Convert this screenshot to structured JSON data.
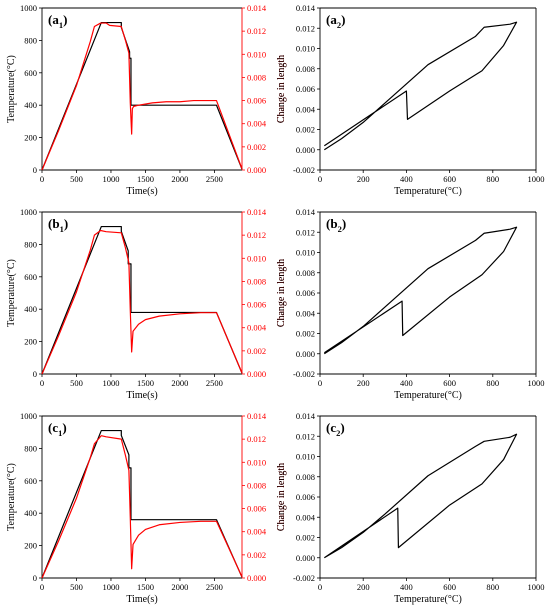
{
  "colors": {
    "black": "#000000",
    "red": "#ff0000"
  },
  "chart_data": [
    {
      "id": "a1",
      "type": "line",
      "panel_label": "(a",
      "panel_sub": "1",
      "panel_close": ")",
      "xlabel": "Time(s)",
      "ylabel": "Temperature(°C)",
      "y2label": "Change in length",
      "xlim": [
        0,
        2900
      ],
      "ylim": [
        0,
        1000
      ],
      "y2lim": [
        0,
        0.014
      ],
      "xticks": [
        "0",
        "500",
        "1000",
        "1500",
        "2000",
        "2500"
      ],
      "yticks": [
        "0",
        "200",
        "400",
        "600",
        "800",
        "1000"
      ],
      "y2ticks": [
        "0.000",
        "0.002",
        "0.004",
        "0.006",
        "0.008",
        "0.010",
        "0.012",
        "0.014"
      ],
      "series": [
        {
          "axis": "left",
          "color": "#000000",
          "points": [
            [
              0,
              0
            ],
            [
              860,
              910
            ],
            [
              1150,
              910
            ],
            [
              1150,
              880
            ],
            [
              1270,
              730
            ],
            [
              1270,
              690
            ],
            [
              1290,
              690
            ],
            [
              1290,
              400
            ],
            [
              2530,
              400
            ],
            [
              2900,
              5
            ]
          ]
        },
        {
          "axis": "right",
          "color": "#ff0000",
          "points": [
            [
              0,
              0
            ],
            [
              240,
              0.0034
            ],
            [
              500,
              0.0073
            ],
            [
              700,
              0.0111
            ],
            [
              760,
              0.0124
            ],
            [
              850,
              0.0127
            ],
            [
              930,
              0.0127
            ],
            [
              980,
              0.0125
            ],
            [
              1150,
              0.0124
            ],
            [
              1210,
              0.0112
            ],
            [
              1260,
              0.0101
            ],
            [
              1280,
              0.0058
            ],
            [
              1300,
              0.0031
            ],
            [
              1310,
              0.0053
            ],
            [
              1330,
              0.0055
            ],
            [
              1400,
              0.0056
            ],
            [
              1600,
              0.0058
            ],
            [
              1800,
              0.0059
            ],
            [
              2000,
              0.0059
            ],
            [
              2200,
              0.006
            ],
            [
              2530,
              0.006
            ],
            [
              2900,
              0.0001
            ]
          ]
        }
      ]
    },
    {
      "id": "a2",
      "type": "line",
      "panel_label": "(a",
      "panel_sub": "2",
      "panel_close": ")",
      "xlabel": "Temperature(°C)",
      "ylabel": "Change in length",
      "xlim": [
        0,
        1000
      ],
      "ylim": [
        -0.002,
        0.014
      ],
      "xticks": [
        "0",
        "200",
        "400",
        "600",
        "800",
        "1000"
      ],
      "yticks": [
        "-0.002",
        "0.000",
        "0.002",
        "0.004",
        "0.006",
        "0.008",
        "0.010",
        "0.012",
        "0.014"
      ],
      "series": [
        {
          "axis": "left",
          "color": "#000000",
          "points": [
            [
              20,
              0.0004
            ],
            [
              400,
              0.0058
            ],
            [
              405,
              0.003
            ],
            [
              600,
              0.0058
            ],
            [
              750,
              0.0078
            ],
            [
              850,
              0.0103
            ],
            [
              910,
              0.0126
            ],
            [
              880,
              0.0124
            ],
            [
              760,
              0.0121
            ],
            [
              720,
              0.0112
            ],
            [
              500,
              0.0084
            ],
            [
              300,
              0.0046
            ],
            [
              200,
              0.0027
            ],
            [
              100,
              0.0011
            ],
            [
              20,
              0
            ]
          ]
        }
      ]
    },
    {
      "id": "b1",
      "type": "line",
      "panel_label": "(b",
      "panel_sub": "1",
      "panel_close": ")",
      "xlabel": "Time(s)",
      "ylabel": "Temperature(°C)",
      "y2label": "Change in length",
      "xlim": [
        0,
        2900
      ],
      "ylim": [
        0,
        1000
      ],
      "y2lim": [
        0,
        0.014
      ],
      "xticks": [
        "0",
        "500",
        "1000",
        "1500",
        "2000",
        "2500"
      ],
      "yticks": [
        "0",
        "200",
        "400",
        "600",
        "800",
        "1000"
      ],
      "y2ticks": [
        "0.000",
        "0.002",
        "0.004",
        "0.006",
        "0.008",
        "0.010",
        "0.012",
        "0.014"
      ],
      "series": [
        {
          "axis": "left",
          "color": "#000000",
          "points": [
            [
              0,
              0
            ],
            [
              860,
              910
            ],
            [
              1150,
              910
            ],
            [
              1150,
              880
            ],
            [
              1250,
              760
            ],
            [
              1250,
              680
            ],
            [
              1290,
              680
            ],
            [
              1290,
              380
            ],
            [
              2530,
              380
            ],
            [
              2900,
              5
            ]
          ]
        },
        {
          "axis": "right",
          "color": "#ff0000",
          "points": [
            [
              0,
              0
            ],
            [
              240,
              0.0033
            ],
            [
              500,
              0.0071
            ],
            [
              700,
              0.0107
            ],
            [
              760,
              0.012
            ],
            [
              850,
              0.0124
            ],
            [
              930,
              0.0123
            ],
            [
              1150,
              0.0122
            ],
            [
              1210,
              0.0109
            ],
            [
              1260,
              0.0096
            ],
            [
              1280,
              0.0055
            ],
            [
              1300,
              0.0019
            ],
            [
              1320,
              0.0037
            ],
            [
              1400,
              0.0043
            ],
            [
              1500,
              0.0047
            ],
            [
              1700,
              0.005
            ],
            [
              2000,
              0.0052
            ],
            [
              2300,
              0.0053
            ],
            [
              2530,
              0.0053
            ],
            [
              2900,
              0.0001
            ]
          ]
        }
      ]
    },
    {
      "id": "b2",
      "type": "line",
      "panel_label": "(b",
      "panel_sub": "2",
      "panel_close": ")",
      "xlabel": "Temperature(°C)",
      "ylabel": "Change in length",
      "xlim": [
        0,
        1000
      ],
      "ylim": [
        -0.002,
        0.014
      ],
      "xticks": [
        "0",
        "200",
        "400",
        "600",
        "800",
        "1000"
      ],
      "yticks": [
        "-0.002",
        "0.000",
        "0.002",
        "0.004",
        "0.006",
        "0.008",
        "0.010",
        "0.012",
        "0.014"
      ],
      "series": [
        {
          "axis": "left",
          "color": "#000000",
          "points": [
            [
              20,
              0.0001
            ],
            [
              380,
              0.0052
            ],
            [
              383,
              0.0018
            ],
            [
              600,
              0.0056
            ],
            [
              750,
              0.0078
            ],
            [
              850,
              0.0101
            ],
            [
              910,
              0.0125
            ],
            [
              880,
              0.0123
            ],
            [
              760,
              0.0119
            ],
            [
              720,
              0.0112
            ],
            [
              500,
              0.0084
            ],
            [
              300,
              0.0046
            ],
            [
              200,
              0.0027
            ],
            [
              100,
              0.0011
            ],
            [
              20,
              0
            ]
          ]
        }
      ]
    },
    {
      "id": "c1",
      "type": "line",
      "panel_label": "(c",
      "panel_sub": "1",
      "panel_close": ")",
      "xlabel": "Time(s)",
      "ylabel": "Temperature(°C)",
      "y2label": "Change in length",
      "xlim": [
        0,
        2900
      ],
      "ylim": [
        0,
        1000
      ],
      "y2lim": [
        0,
        0.014
      ],
      "xticks": [
        "0",
        "500",
        "1000",
        "1500",
        "2000",
        "2500"
      ],
      "yticks": [
        "0",
        "200",
        "400",
        "600",
        "800",
        "1000"
      ],
      "y2ticks": [
        "0.000",
        "0.002",
        "0.004",
        "0.006",
        "0.008",
        "0.010",
        "0.012",
        "0.014"
      ],
      "series": [
        {
          "axis": "left",
          "color": "#000000",
          "points": [
            [
              0,
              0
            ],
            [
              860,
              910
            ],
            [
              1150,
              910
            ],
            [
              1150,
              880
            ],
            [
              1260,
              760
            ],
            [
              1260,
              680
            ],
            [
              1290,
              680
            ],
            [
              1290,
              360
            ],
            [
              2530,
              360
            ],
            [
              2900,
              5
            ]
          ]
        },
        {
          "axis": "right",
          "color": "#ff0000",
          "points": [
            [
              0,
              0
            ],
            [
              240,
              0.0032
            ],
            [
              500,
              0.0069
            ],
            [
              700,
              0.0104
            ],
            [
              760,
              0.0116
            ],
            [
              860,
              0.0123
            ],
            [
              930,
              0.0122
            ],
            [
              1150,
              0.012
            ],
            [
              1210,
              0.0106
            ],
            [
              1260,
              0.0093
            ],
            [
              1280,
              0.0052
            ],
            [
              1300,
              0.0008
            ],
            [
              1320,
              0.0029
            ],
            [
              1400,
              0.0037
            ],
            [
              1500,
              0.0042
            ],
            [
              1700,
              0.0046
            ],
            [
              2000,
              0.0048
            ],
            [
              2300,
              0.0049
            ],
            [
              2530,
              0.0049
            ],
            [
              2900,
              0.0001
            ]
          ]
        }
      ]
    },
    {
      "id": "c2",
      "type": "line",
      "panel_label": "(c",
      "panel_sub": "2",
      "panel_close": ")",
      "xlabel": "Temperature(°C)",
      "ylabel": "Change in length",
      "xlim": [
        0,
        1000
      ],
      "ylim": [
        -0.002,
        0.014
      ],
      "xticks": [
        "0",
        "200",
        "400",
        "600",
        "800",
        "1000"
      ],
      "yticks": [
        "-0.002",
        "0.000",
        "0.002",
        "0.004",
        "0.006",
        "0.008",
        "0.010",
        "0.012",
        "0.014"
      ],
      "series": [
        {
          "axis": "left",
          "color": "#000000",
          "points": [
            [
              20,
              0
            ],
            [
              360,
              0.0049
            ],
            [
              363,
              0.001
            ],
            [
              600,
              0.0052
            ],
            [
              750,
              0.0073
            ],
            [
              850,
              0.0097
            ],
            [
              910,
              0.0122
            ],
            [
              880,
              0.0119
            ],
            [
              760,
              0.0115
            ],
            [
              720,
              0.011
            ],
            [
              500,
              0.0081
            ],
            [
              300,
              0.0043
            ],
            [
              200,
              0.0025
            ],
            [
              100,
              0.001
            ],
            [
              20,
              0
            ]
          ]
        }
      ]
    }
  ]
}
